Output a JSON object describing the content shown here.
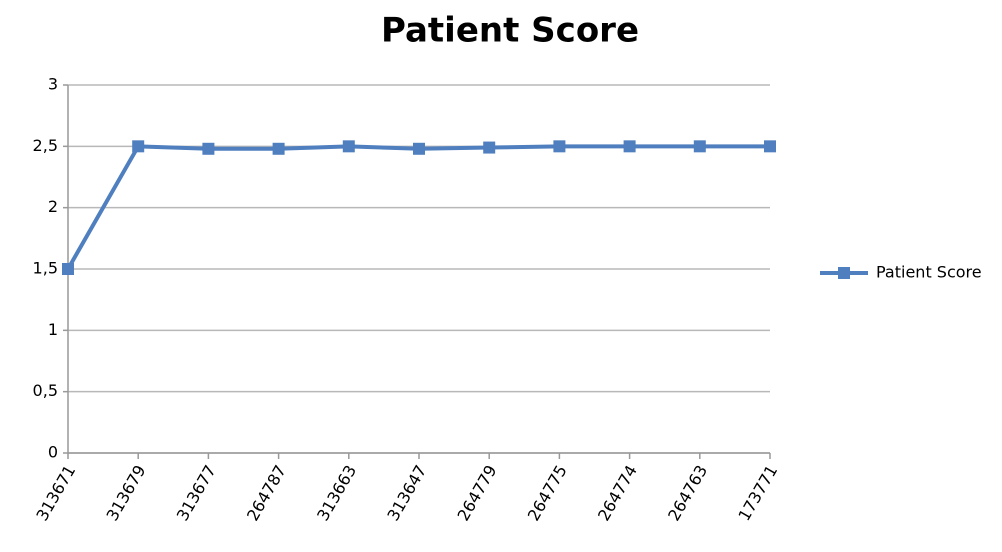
{
  "chart_data": {
    "type": "line",
    "title": "Patient Score",
    "categories": [
      "313671",
      "313679",
      "313677",
      "264787",
      "313663",
      "313647",
      "264779",
      "264775",
      "264774",
      "264763",
      "173771"
    ],
    "series": [
      {
        "name": "Patient Score",
        "color": "#4f7fbf",
        "values": [
          1.5,
          2.5,
          2.48,
          2.48,
          2.5,
          2.48,
          2.49,
          2.5,
          2.5,
          2.5,
          2.5
        ]
      }
    ],
    "ylim": [
      0,
      3
    ],
    "yticks": [
      0,
      {
        "value": 0.5,
        "label": "0,5"
      },
      1,
      {
        "value": 1.5,
        "label": "1,5"
      },
      2,
      {
        "value": 2.5,
        "label": "2,5"
      },
      3
    ],
    "grid": true,
    "legend": "right"
  }
}
